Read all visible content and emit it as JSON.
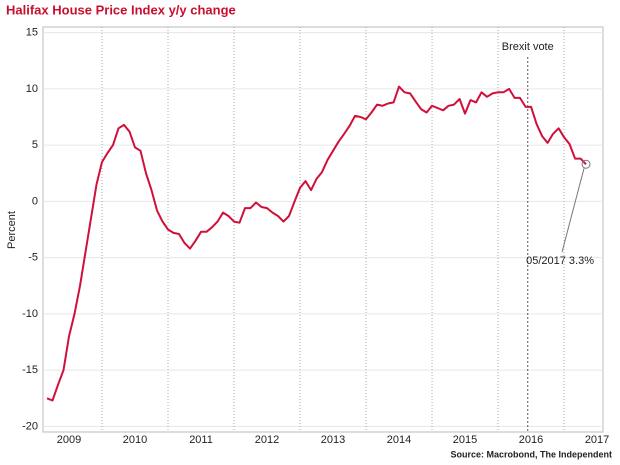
{
  "chart_data": {
    "type": "line",
    "title": "Halifax House Price Index y/y change",
    "ylabel": "Percent",
    "source": "Source: Macrobond, The Independent",
    "x": [
      2009.167,
      2009.25,
      2009.333,
      2009.417,
      2009.5,
      2009.583,
      2009.667,
      2009.75,
      2009.833,
      2009.917,
      2010,
      2010.083,
      2010.167,
      2010.25,
      2010.333,
      2010.417,
      2010.5,
      2010.583,
      2010.667,
      2010.75,
      2010.833,
      2010.917,
      2011,
      2011.083,
      2011.167,
      2011.25,
      2011.333,
      2011.417,
      2011.5,
      2011.583,
      2011.667,
      2011.75,
      2011.833,
      2011.917,
      2012,
      2012.083,
      2012.167,
      2012.25,
      2012.333,
      2012.417,
      2012.5,
      2012.583,
      2012.667,
      2012.75,
      2012.833,
      2012.917,
      2013,
      2013.083,
      2013.167,
      2013.25,
      2013.333,
      2013.417,
      2013.5,
      2013.583,
      2013.667,
      2013.75,
      2013.833,
      2013.917,
      2014,
      2014.083,
      2014.167,
      2014.25,
      2014.333,
      2014.417,
      2014.5,
      2014.583,
      2014.667,
      2014.75,
      2014.833,
      2014.917,
      2015,
      2015.083,
      2015.167,
      2015.25,
      2015.333,
      2015.417,
      2015.5,
      2015.583,
      2015.667,
      2015.75,
      2015.833,
      2015.917,
      2016,
      2016.083,
      2016.167,
      2016.25,
      2016.333,
      2016.417,
      2016.5,
      2016.583,
      2016.667,
      2016.75,
      2016.833,
      2016.917,
      2017,
      2017.083,
      2017.167,
      2017.25,
      2017.333
    ],
    "series": [
      {
        "name": "Halifax House Price Index y/y",
        "color": "#d0103a",
        "values": [
          -17.5,
          -17.7,
          -16.3,
          -15,
          -12,
          -10,
          -7.5,
          -4.5,
          -1.5,
          1.5,
          3.5,
          4.3,
          5,
          6.5,
          6.8,
          6.2,
          4.8,
          4.5,
          2.5,
          1,
          -0.8,
          -1.8,
          -2.5,
          -2.8,
          -2.9,
          -3.7,
          -4.2,
          -3.5,
          -2.7,
          -2.7,
          -2.3,
          -1.8,
          -1,
          -1.3,
          -1.8,
          -1.9,
          -0.6,
          -0.6,
          -0.1,
          -0.5,
          -0.6,
          -1,
          -1.3,
          -1.8,
          -1.3,
          0,
          1.2,
          1.8,
          1,
          2,
          2.6,
          3.7,
          4.5,
          5.3,
          6,
          6.7,
          7.6,
          7.5,
          7.3,
          7.9,
          8.6,
          8.5,
          8.7,
          8.8,
          10.2,
          9.7,
          9.6,
          8.9,
          8.2,
          7.9,
          8.5,
          8.3,
          8.1,
          8.5,
          8.6,
          9.1,
          7.8,
          9,
          8.8,
          9.7,
          9.3,
          9.6,
          9.7,
          9.7,
          10,
          9.2,
          9.2,
          8.4,
          8.4,
          6.9,
          5.8,
          5.2,
          6,
          6.5,
          5.7,
          5.1,
          3.8,
          3.8,
          3.3
        ]
      }
    ],
    "xlim": [
      2009.106,
      2017.59
    ],
    "xticks": [
      {
        "value": 2009,
        "label": "2009"
      },
      {
        "value": 2010,
        "label": "2010"
      },
      {
        "value": 2011,
        "label": "2011"
      },
      {
        "value": 2012,
        "label": "2012"
      },
      {
        "value": 2013,
        "label": "2013"
      },
      {
        "value": 2014,
        "label": "2014"
      },
      {
        "value": 2015,
        "label": "2015"
      },
      {
        "value": 2016,
        "label": "2016"
      },
      {
        "value": 2017,
        "label": "2017"
      }
    ],
    "ylim": [
      -20.5,
      15.5
    ],
    "yticks": [
      -20,
      -15,
      -10,
      -5,
      0,
      5,
      10,
      15
    ],
    "grid": true,
    "vline": {
      "text": "Brexit vote",
      "x": 2016.45
    },
    "point_annotation": {
      "text": "05/2017 3.3%",
      "x": 2017.333,
      "y": 3.3
    }
  }
}
